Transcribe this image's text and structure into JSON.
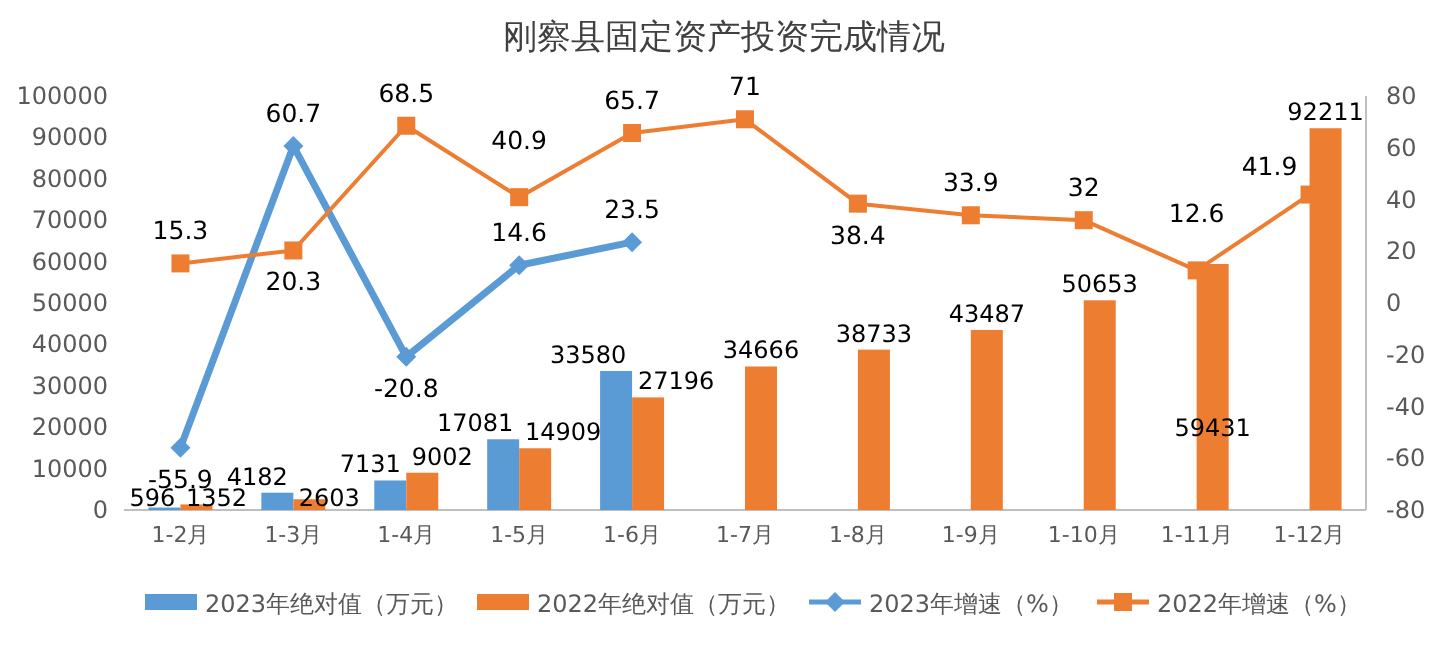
{
  "chart_data": {
    "type": "bar",
    "title": "刚察县固定资产投资完成情况",
    "categories": [
      "1-2月",
      "1-3月",
      "1-4月",
      "1-5月",
      "1-6月",
      "1-7月",
      "1-8月",
      "1-9月",
      "1-10月",
      "1-11月",
      "1-12月"
    ],
    "series": [
      {
        "name": "2023年绝对值（万元）",
        "color": "#5b9bd5",
        "values": [
          596,
          4182,
          7131,
          17081,
          33580,
          null,
          null,
          null,
          null,
          null,
          null
        ]
      },
      {
        "name": "2022年绝对值（万元）",
        "color": "#ed7d31",
        "values": [
          1352,
          2603,
          9002,
          14909,
          27196,
          34666,
          38733,
          43487,
          50653,
          59431,
          92211
        ]
      },
      {
        "name": "2023年增速（%）",
        "type": "line",
        "axis": "y2",
        "marker": "diamond",
        "color": "#5b9bd5",
        "values": [
          -55.9,
          60.7,
          -20.8,
          14.6,
          23.5,
          null,
          null,
          null,
          null,
          null,
          null
        ]
      },
      {
        "name": "2022年增速（%）",
        "type": "line",
        "axis": "y2",
        "marker": "square",
        "color": "#ed7d31",
        "values": [
          15.3,
          20.3,
          68.5,
          40.9,
          65.7,
          71,
          38.4,
          33.9,
          32,
          12.6,
          41.9
        ]
      }
    ],
    "ylim": [
      0,
      100000
    ],
    "yticks": [
      0,
      10000,
      20000,
      30000,
      40000,
      50000,
      60000,
      70000,
      80000,
      90000,
      100000
    ],
    "y2lim": [
      -80,
      80
    ],
    "y2ticks": [
      -80,
      -60,
      -40,
      -20,
      0,
      20,
      40,
      60,
      80
    ],
    "data_labels": true,
    "legend": "bottom",
    "grid": false
  }
}
